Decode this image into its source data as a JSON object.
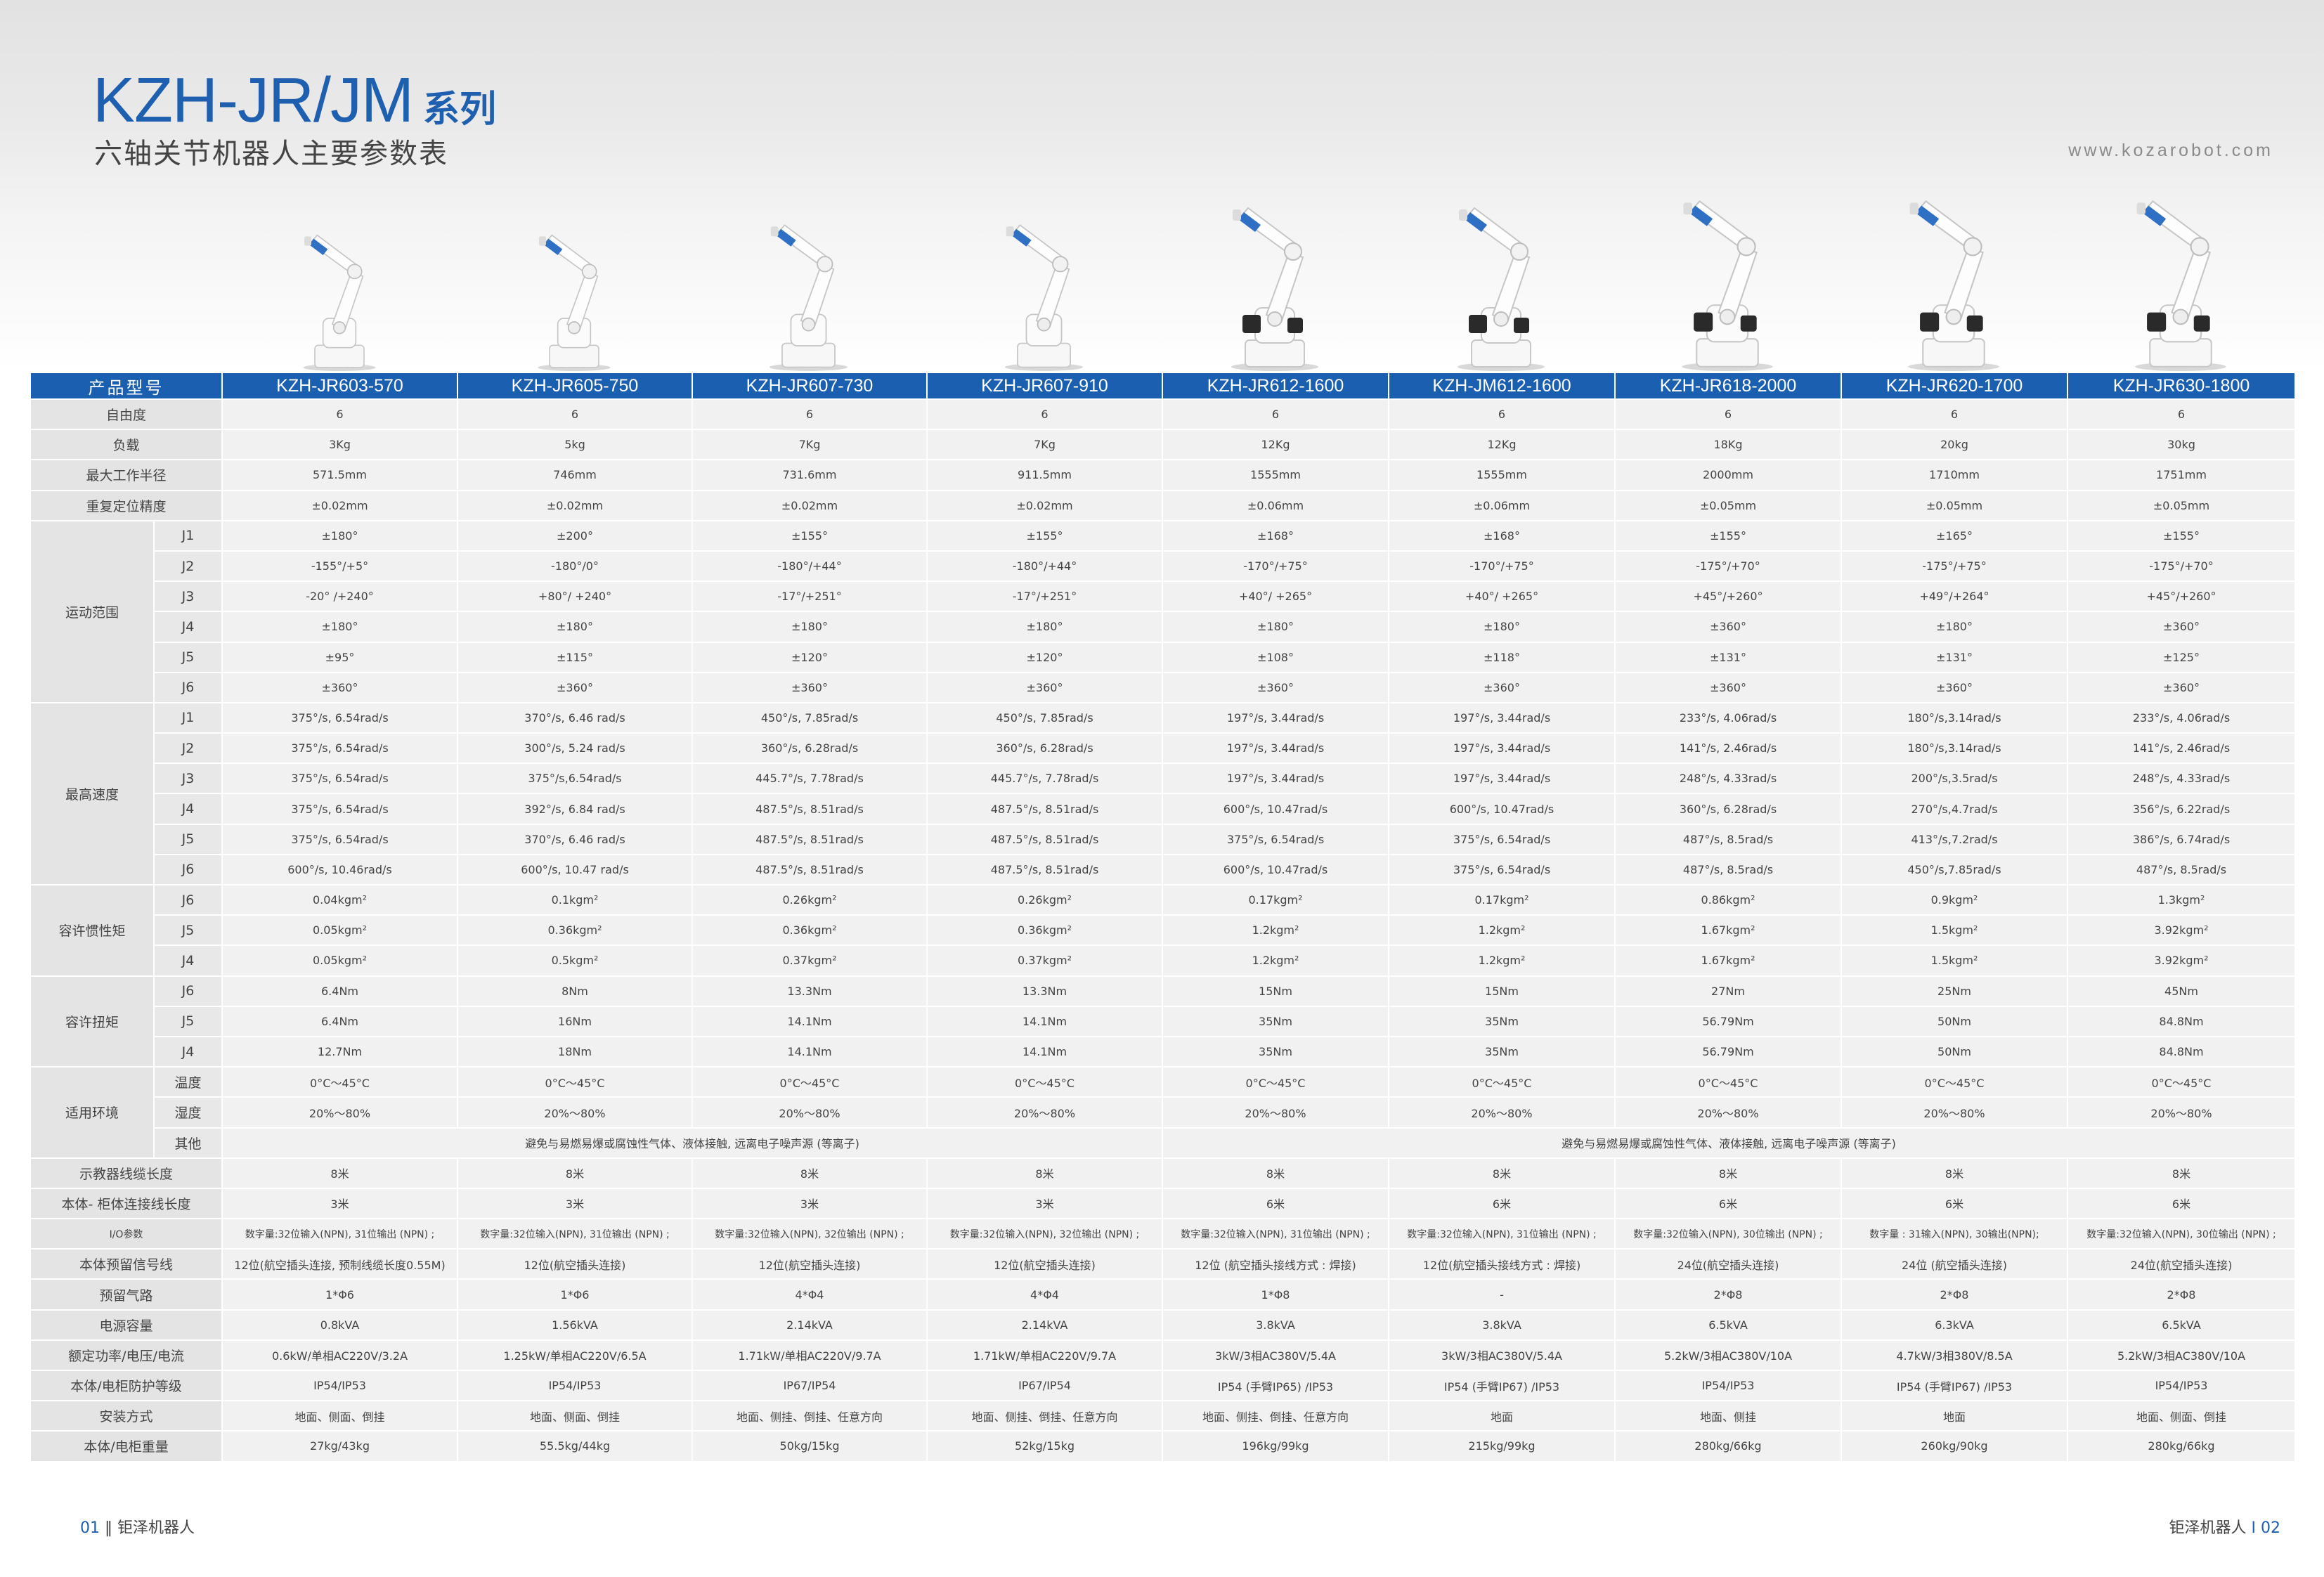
{
  "header": {
    "series_main": "KZH-JR/JM",
    "series_suffix": "系列",
    "subtitle": "六轴关节机器人主要参数表",
    "website": "www.kozarobot.com"
  },
  "colors": {
    "brand_blue": "#1b5fb1",
    "row_bg": "#f1f1f1",
    "label_bg": "#e4e4e4"
  },
  "table": {
    "header_label": "产品型号",
    "models": [
      "KZH-JR603-570",
      "KZH-JR605-750",
      "KZH-JR607-730",
      "KZH-JR607-910",
      "KZH-JR612-1600",
      "KZH-JM612-1600",
      "KZH-JR618-2000",
      "KZH-JR620-1700",
      "KZH-JR630-1800"
    ],
    "rows": [
      {
        "label": "自由度",
        "values": [
          "6",
          "6",
          "6",
          "6",
          "6",
          "6",
          "6",
          "6",
          "6"
        ]
      },
      {
        "label": "负载",
        "values": [
          "3Kg",
          "5kg",
          "7Kg",
          "7Kg",
          "12Kg",
          "12Kg",
          "18Kg",
          "20kg",
          "30kg"
        ]
      },
      {
        "label": "最大工作半径",
        "values": [
          "571.5mm",
          "746mm",
          "731.6mm",
          "911.5mm",
          "1555mm",
          "1555mm",
          "2000mm",
          "1710mm",
          "1751mm"
        ]
      },
      {
        "label": "重复定位精度",
        "values": [
          "±0.02mm",
          "±0.02mm",
          "±0.02mm",
          "±0.02mm",
          "±0.06mm",
          "±0.06mm",
          "±0.05mm",
          "±0.05mm",
          "±0.05mm"
        ]
      }
    ],
    "groups": [
      {
        "label": "运动范围",
        "rows": [
          {
            "sub": "J1",
            "values": [
              "±180°",
              "±200°",
              "±155°",
              "±155°",
              "±168°",
              "±168°",
              "±155°",
              "±165°",
              "±155°"
            ]
          },
          {
            "sub": "J2",
            "values": [
              "-155°/+5°",
              "-180°/0°",
              "-180°/+44°",
              "-180°/+44°",
              "-170°/+75°",
              "-170°/+75°",
              "-175°/+70°",
              "-175°/+75°",
              "-175°/+70°"
            ]
          },
          {
            "sub": "J3",
            "values": [
              "-20° /+240°",
              "+80°/ +240°",
              "-17°/+251°",
              "-17°/+251°",
              "+40°/ +265°",
              "+40°/ +265°",
              "+45°/+260°",
              "+49°/+264°",
              "+45°/+260°"
            ]
          },
          {
            "sub": "J4",
            "values": [
              "±180°",
              "±180°",
              "±180°",
              "±180°",
              "±180°",
              "±180°",
              "±360°",
              "±180°",
              "±360°"
            ]
          },
          {
            "sub": "J5",
            "values": [
              "±95°",
              "±115°",
              "±120°",
              "±120°",
              "±108°",
              "±118°",
              "±131°",
              "±131°",
              "±125°"
            ]
          },
          {
            "sub": "J6",
            "values": [
              "±360°",
              "±360°",
              "±360°",
              "±360°",
              "±360°",
              "±360°",
              "±360°",
              "±360°",
              "±360°"
            ]
          }
        ]
      },
      {
        "label": "最高速度",
        "rows": [
          {
            "sub": "J1",
            "values": [
              "375°/s, 6.54rad/s",
              "370°/s, 6.46 rad/s",
              "450°/s, 7.85rad/s",
              "450°/s, 7.85rad/s",
              "197°/s, 3.44rad/s",
              "197°/s, 3.44rad/s",
              "233°/s, 4.06rad/s",
              "180°/s,3.14rad/s",
              "233°/s, 4.06rad/s"
            ]
          },
          {
            "sub": "J2",
            "values": [
              "375°/s, 6.54rad/s",
              "300°/s, 5.24 rad/s",
              "360°/s, 6.28rad/s",
              "360°/s, 6.28rad/s",
              "197°/s, 3.44rad/s",
              "197°/s, 3.44rad/s",
              "141°/s, 2.46rad/s",
              "180°/s,3.14rad/s",
              "141°/s, 2.46rad/s"
            ]
          },
          {
            "sub": "J3",
            "values": [
              "375°/s, 6.54rad/s",
              "375°/s,6.54rad/s",
              "445.7°/s, 7.78rad/s",
              "445.7°/s, 7.78rad/s",
              "197°/s, 3.44rad/s",
              "197°/s, 3.44rad/s",
              "248°/s, 4.33rad/s",
              "200°/s,3.5rad/s",
              "248°/s, 4.33rad/s"
            ]
          },
          {
            "sub": "J4",
            "values": [
              "375°/s, 6.54rad/s",
              "392°/s, 6.84 rad/s",
              "487.5°/s, 8.51rad/s",
              "487.5°/s, 8.51rad/s",
              "600°/s, 10.47rad/s",
              "600°/s, 10.47rad/s",
              "360°/s, 6.28rad/s",
              "270°/s,4.7rad/s",
              "356°/s, 6.22rad/s"
            ]
          },
          {
            "sub": "J5",
            "values": [
              "375°/s, 6.54rad/s",
              "370°/s, 6.46 rad/s",
              "487.5°/s, 8.51rad/s",
              "487.5°/s, 8.51rad/s",
              "375°/s, 6.54rad/s",
              "375°/s, 6.54rad/s",
              "487°/s, 8.5rad/s",
              "413°/s,7.2rad/s",
              "386°/s, 6.74rad/s"
            ]
          },
          {
            "sub": "J6",
            "values": [
              "600°/s, 10.46rad/s",
              "600°/s, 10.47 rad/s",
              "487.5°/s, 8.51rad/s",
              "487.5°/s, 8.51rad/s",
              "600°/s, 10.47rad/s",
              "375°/s, 6.54rad/s",
              "487°/s, 8.5rad/s",
              "450°/s,7.85rad/s",
              "487°/s, 8.5rad/s"
            ]
          }
        ]
      },
      {
        "label": "容许惯性矩",
        "rows": [
          {
            "sub": "J6",
            "values": [
              "0.04kgm²",
              "0.1kgm²",
              "0.26kgm²",
              "0.26kgm²",
              "0.17kgm²",
              "0.17kgm²",
              "0.86kgm²",
              "0.9kgm²",
              "1.3kgm²"
            ]
          },
          {
            "sub": "J5",
            "values": [
              "0.05kgm²",
              "0.36kgm²",
              "0.36kgm²",
              "0.36kgm²",
              "1.2kgm²",
              "1.2kgm²",
              "1.67kgm²",
              "1.5kgm²",
              "3.92kgm²"
            ]
          },
          {
            "sub": "J4",
            "values": [
              "0.05kgm²",
              "0.5kgm²",
              "0.37kgm²",
              "0.37kgm²",
              "1.2kgm²",
              "1.2kgm²",
              "1.67kgm²",
              "1.5kgm²",
              "3.92kgm²"
            ]
          }
        ]
      },
      {
        "label": "容许扭矩",
        "rows": [
          {
            "sub": "J6",
            "values": [
              "6.4Nm",
              "8Nm",
              "13.3Nm",
              "13.3Nm",
              "15Nm",
              "15Nm",
              "27Nm",
              "25Nm",
              "45Nm"
            ]
          },
          {
            "sub": "J5",
            "values": [
              "6.4Nm",
              "16Nm",
              "14.1Nm",
              "14.1Nm",
              "35Nm",
              "35Nm",
              "56.79Nm",
              "50Nm",
              "84.8Nm"
            ]
          },
          {
            "sub": "J4",
            "values": [
              "12.7Nm",
              "18Nm",
              "14.1Nm",
              "14.1Nm",
              "35Nm",
              "35Nm",
              "56.79Nm",
              "50Nm",
              "84.8Nm"
            ]
          }
        ]
      }
    ],
    "environment": {
      "label": "适用环境",
      "temp_label": "温度",
      "temp_values": [
        "0°C～45°C",
        "0°C～45°C",
        "0°C～45°C",
        "0°C～45°C",
        "0°C～45°C",
        "0°C～45°C",
        "0°C～45°C",
        "0°C～45°C",
        "0°C～45°C"
      ],
      "humidity_label": "湿度",
      "humidity_values": [
        "20%～80%",
        "20%～80%",
        "20%～80%",
        "20%～80%",
        "20%～80%",
        "20%～80%",
        "20%～80%",
        "20%～80%",
        "20%～80%"
      ],
      "other_label": "其他",
      "other_left": "避免与易燃易爆或腐蚀性气体、液体接触, 远离电子噪声源 (等离子)",
      "other_right": "避免与易燃易爆或腐蚀性气体、液体接触, 远离电子噪声源 (等离子)"
    },
    "rows_bottom": [
      {
        "label": "示教器线缆长度",
        "values": [
          "8米",
          "8米",
          "8米",
          "8米",
          "8米",
          "8米",
          "8米",
          "8米",
          "8米"
        ]
      },
      {
        "label": "本体- 柜体连接线长度",
        "values": [
          "3米",
          "3米",
          "3米",
          "3米",
          "6米",
          "6米",
          "6米",
          "6米",
          "6米"
        ]
      },
      {
        "label": "I/O参数",
        "values": [
          "数字量:32位输入(NPN), 31位输出 (NPN) ;",
          "数字量:32位输入(NPN), 31位输出 (NPN) ;",
          "数字量:32位输入(NPN), 32位输出 (NPN) ;",
          "数字量:32位输入(NPN), 32位输出 (NPN) ;",
          "数字量:32位输入(NPN), 31位输出 (NPN) ;",
          "数字量:32位输入(NPN), 31位输出 (NPN) ;",
          "数字量:32位输入(NPN), 30位输出 (NPN) ;",
          "数字量 : 31输入(NPN), 30输出(NPN);",
          "数字量:32位输入(NPN), 30位输出 (NPN) ;"
        ]
      },
      {
        "label": "本体预留信号线",
        "values": [
          "12位(航空插头连接, 预制线缆长度0.55M)",
          "12位(航空插头连接)",
          "12位(航空插头连接)",
          "12位(航空插头连接)",
          "12位 (航空插头接线方式 : 焊接)",
          "12位(航空插头接线方式 : 焊接)",
          "24位(航空插头连接)",
          "24位 (航空插头连接)",
          "24位(航空插头连接)"
        ]
      },
      {
        "label": "预留气路",
        "values": [
          "1*Φ6",
          "1*Φ6",
          "4*Φ4",
          "4*Φ4",
          "1*Φ8",
          "-",
          "2*Φ8",
          "2*Φ8",
          "2*Φ8"
        ]
      },
      {
        "label": "电源容量",
        "values": [
          "0.8kVA",
          "1.56kVA",
          "2.14kVA",
          "2.14kVA",
          "3.8kVA",
          "3.8kVA",
          "6.5kVA",
          "6.3kVA",
          "6.5kVA"
        ]
      },
      {
        "label": "额定功率/电压/电流",
        "values": [
          "0.6kW/单相AC220V/3.2A",
          "1.25kW/单相AC220V/6.5A",
          "1.71kW/单相AC220V/9.7A",
          "1.71kW/单相AC220V/9.7A",
          "3kW/3相AC380V/5.4A",
          "3kW/3相AC380V/5.4A",
          "5.2kW/3相AC380V/10A",
          "4.7kW/3相380V/8.5A",
          "5.2kW/3相AC380V/10A"
        ]
      },
      {
        "label": "本体/电柜防护等级",
        "values": [
          "IP54/IP53",
          "IP54/IP53",
          "IP67/IP54",
          "IP67/IP54",
          "IP54 (手臂IP65) /IP53",
          "IP54 (手臂IP67) /IP53",
          "IP54/IP53",
          "IP54 (手臂IP67) /IP53",
          "IP54/IP53"
        ]
      },
      {
        "label": "安装方式",
        "values": [
          "地面、侧面、倒挂",
          "地面、侧面、倒挂",
          "地面、侧挂、倒挂、任意方向",
          "地面、侧挂、倒挂、任意方向",
          "地面、侧挂、倒挂、任意方向",
          "地面",
          "地面、侧挂",
          "地面",
          "地面、侧面、倒挂"
        ]
      },
      {
        "label": "本体/电柜重量",
        "values": [
          "27kg/43kg",
          "55.5kg/44kg",
          "50kg/15kg",
          "52kg/15kg",
          "196kg/99kg",
          "215kg/99kg",
          "280kg/66kg",
          "260kg/90kg",
          "280kg/66kg"
        ]
      }
    ]
  },
  "footer": {
    "left_page": "01",
    "left_sep": "‖",
    "left_brand": "钜泽机器人",
    "right_brand": "钜泽机器人",
    "right_sep": "I",
    "right_page": "02"
  }
}
